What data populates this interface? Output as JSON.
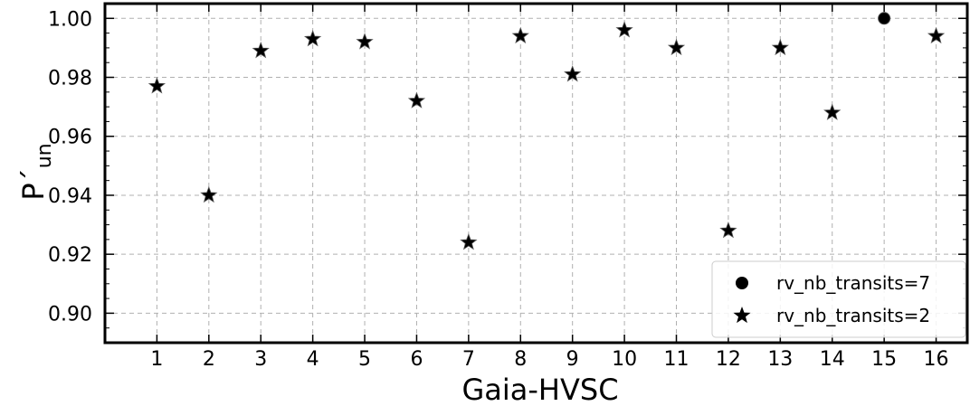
{
  "chart_data": {
    "type": "scatter",
    "xlabel": "Gaia-HVSC",
    "ylabel": "P´",
    "ylabel_subscript": "un",
    "x_ticks": [
      "1",
      "2",
      "3",
      "4",
      "5",
      "6",
      "7",
      "8",
      "9",
      "10",
      "11",
      "12",
      "13",
      "14",
      "15",
      "16"
    ],
    "y_ticks": [
      "0.90",
      "0.92",
      "0.94",
      "0.96",
      "0.98",
      "1.00"
    ],
    "xlim": [
      0,
      16.6
    ],
    "ylim": [
      0.89,
      1.005
    ],
    "grid": true,
    "legend_position": "lower-right",
    "series": [
      {
        "name": "rv_nb_transits=7",
        "marker": "circle",
        "color": "#000000",
        "points": [
          {
            "x": 15,
            "y": 1.0
          }
        ]
      },
      {
        "name": "rv_nb_transits=2",
        "marker": "star",
        "color": "#000000",
        "points": [
          {
            "x": 1,
            "y": 0.977
          },
          {
            "x": 2,
            "y": 0.94
          },
          {
            "x": 3,
            "y": 0.989
          },
          {
            "x": 4,
            "y": 0.993
          },
          {
            "x": 5,
            "y": 0.992
          },
          {
            "x": 6,
            "y": 0.972
          },
          {
            "x": 7,
            "y": 0.924
          },
          {
            "x": 8,
            "y": 0.994
          },
          {
            "x": 9,
            "y": 0.981
          },
          {
            "x": 10,
            "y": 0.996
          },
          {
            "x": 11,
            "y": 0.99
          },
          {
            "x": 12,
            "y": 0.928
          },
          {
            "x": 13,
            "y": 0.99
          },
          {
            "x": 14,
            "y": 0.968
          },
          {
            "x": 16,
            "y": 0.994
          }
        ]
      }
    ]
  }
}
